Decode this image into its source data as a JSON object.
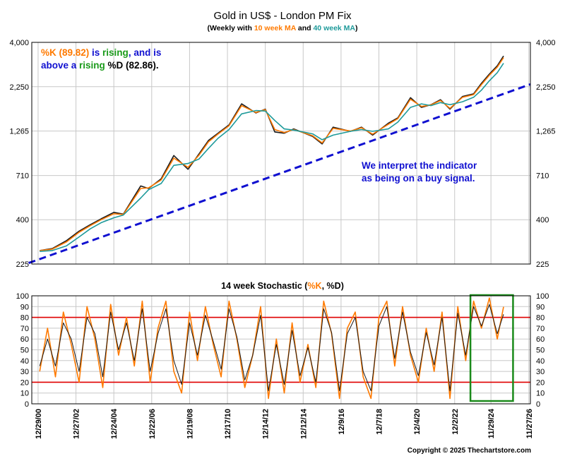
{
  "chart_data": [
    {
      "type": "line",
      "title": "Gold in US$ - London PM Fix",
      "subtitle": {
        "prefix": "(Weekly with ",
        "ma10": "10 week MA",
        "mid": " and ",
        "ma40": "40 week MA",
        "suffix": ")"
      },
      "y_scale": "log",
      "ylim": [
        225,
        4000
      ],
      "y_ticks": [
        "4,000",
        "2,250",
        "1,265",
        "710",
        "400",
        "225"
      ],
      "y_tick_values": [
        4000,
        2250,
        1265,
        710,
        400,
        225
      ],
      "x_range": [
        "2000-08",
        "2026-12"
      ],
      "series": [
        {
          "name": "Gold",
          "color": "#1a1a1a",
          "x": [
            "2001-01",
            "2001-09",
            "2002-06",
            "2003-02",
            "2003-09",
            "2004-04",
            "2004-12",
            "2005-06",
            "2006-05",
            "2006-10",
            "2007-06",
            "2008-02",
            "2008-11",
            "2009-06",
            "2009-12",
            "2010-06",
            "2011-01",
            "2011-09",
            "2012-06",
            "2012-12",
            "2013-06",
            "2013-12",
            "2014-06",
            "2015-06",
            "2015-12",
            "2016-07",
            "2017-06",
            "2018-01",
            "2018-08",
            "2019-06",
            "2019-12",
            "2020-08",
            "2021-03",
            "2021-09",
            "2022-03",
            "2022-09",
            "2023-05",
            "2023-12",
            "2024-05",
            "2024-10",
            "2025-03",
            "2025-07"
          ],
          "values": [
            268,
            275,
            305,
            345,
            375,
            405,
            440,
            430,
            620,
            600,
            680,
            920,
            770,
            940,
            1120,
            1230,
            1370,
            1800,
            1600,
            1680,
            1250,
            1230,
            1300,
            1180,
            1070,
            1330,
            1260,
            1330,
            1200,
            1400,
            1500,
            1950,
            1720,
            1780,
            1900,
            1680,
            1980,
            2050,
            2350,
            2650,
            2950,
            3350
          ]
        },
        {
          "name": "10 week MA",
          "color": "#ff7a00",
          "x": [
            "2001-01",
            "2001-09",
            "2002-06",
            "2003-02",
            "2003-09",
            "2004-04",
            "2004-12",
            "2005-06",
            "2006-05",
            "2006-10",
            "2007-06",
            "2008-02",
            "2008-11",
            "2009-06",
            "2009-12",
            "2010-06",
            "2011-01",
            "2011-09",
            "2012-06",
            "2012-12",
            "2013-06",
            "2013-12",
            "2014-06",
            "2015-06",
            "2015-12",
            "2016-07",
            "2017-06",
            "2018-01",
            "2018-08",
            "2019-06",
            "2019-12",
            "2020-08",
            "2021-03",
            "2021-09",
            "2022-03",
            "2022-09",
            "2023-05",
            "2023-12",
            "2024-05",
            "2024-10",
            "2025-03",
            "2025-07"
          ],
          "values": [
            268,
            273,
            300,
            340,
            370,
            400,
            432,
            428,
            600,
            605,
            670,
            890,
            790,
            925,
            1100,
            1215,
            1355,
            1760,
            1610,
            1670,
            1290,
            1240,
            1290,
            1190,
            1085,
            1310,
            1265,
            1320,
            1215,
            1380,
            1485,
            1910,
            1740,
            1775,
            1880,
            1700,
            1960,
            2030,
            2310,
            2610,
            2900,
            3280
          ]
        },
        {
          "name": "40 week MA",
          "color": "#1e9a9a",
          "x": [
            "2001-01",
            "2001-09",
            "2002-06",
            "2003-02",
            "2003-09",
            "2004-04",
            "2004-12",
            "2005-06",
            "2006-05",
            "2006-10",
            "2007-06",
            "2008-02",
            "2008-11",
            "2009-06",
            "2009-12",
            "2010-06",
            "2011-01",
            "2011-09",
            "2012-06",
            "2012-12",
            "2013-06",
            "2013-12",
            "2014-06",
            "2015-06",
            "2015-12",
            "2016-07",
            "2017-06",
            "2018-01",
            "2018-08",
            "2019-06",
            "2019-12",
            "2020-08",
            "2021-03",
            "2021-09",
            "2022-03",
            "2022-09",
            "2023-05",
            "2023-12",
            "2024-05",
            "2024-10",
            "2025-03",
            "2025-07"
          ],
          "values": [
            265,
            268,
            285,
            320,
            355,
            385,
            410,
            425,
            530,
            590,
            640,
            810,
            830,
            880,
            1010,
            1150,
            1290,
            1580,
            1650,
            1640,
            1450,
            1300,
            1280,
            1220,
            1130,
            1200,
            1260,
            1290,
            1260,
            1300,
            1420,
            1720,
            1800,
            1760,
            1830,
            1780,
            1850,
            1960,
            2150,
            2430,
            2700,
            3050
          ]
        },
        {
          "name": "trendline",
          "color": "#1010d0",
          "x": [
            "2000-06",
            "2026-12"
          ],
          "values": [
            228,
            2320
          ]
        }
      ],
      "annotations": {
        "status": {
          "k_label": "%K (89.82)",
          "t1": " is ",
          "rising1": "rising",
          "t2": ", and is",
          "line2a": "above a ",
          "rising2": "rising",
          "line2b": " %D (82.86)."
        },
        "interpret": {
          "line1": "We interpret the indicator",
          "line2": "as being on a buy signal."
        }
      },
      "grid": true
    },
    {
      "type": "line",
      "title": {
        "prefix": "14 week Stochastic (",
        "k": "%K",
        "mid": ", ",
        "d": "%D",
        "suffix": ")"
      },
      "ylim": [
        0,
        100
      ],
      "y_ticks": [
        "100",
        "90",
        "80",
        "70",
        "60",
        "50",
        "40",
        "30",
        "20",
        "10",
        "0"
      ],
      "y_tick_values": [
        100,
        90,
        80,
        70,
        60,
        50,
        40,
        30,
        20,
        10,
        0
      ],
      "reference_lines": [
        80,
        20
      ],
      "highlight_box": {
        "from": "2023-10",
        "to": "2026-01"
      },
      "x_tick_labels": [
        "12/29/00",
        "12/27/02",
        "12/24/04",
        "12/22/06",
        "12/19/08",
        "12/17/10",
        "12/14/12",
        "12/12/14",
        "12/9/16",
        "12/7/18",
        "12/4/20",
        "12/2/22",
        "11/29/24",
        "11/27/26"
      ],
      "x_tick_dates": [
        "2000-12",
        "2002-12",
        "2004-12",
        "2006-12",
        "2008-12",
        "2010-12",
        "2012-12",
        "2014-12",
        "2016-12",
        "2018-12",
        "2020-12",
        "2022-12",
        "2024-11",
        "2026-11"
      ],
      "series": [
        {
          "name": "%K",
          "color": "#ff7a00",
          "x": [
            "2001-01",
            "2001-06",
            "2001-11",
            "2002-04",
            "2002-09",
            "2003-02",
            "2003-07",
            "2003-12",
            "2004-05",
            "2004-10",
            "2005-03",
            "2005-08",
            "2006-01",
            "2006-06",
            "2006-11",
            "2007-04",
            "2007-09",
            "2008-02",
            "2008-07",
            "2008-12",
            "2009-05",
            "2009-10",
            "2010-03",
            "2010-08",
            "2011-01",
            "2011-06",
            "2011-11",
            "2012-04",
            "2012-09",
            "2013-02",
            "2013-07",
            "2013-12",
            "2014-05",
            "2014-10",
            "2015-03",
            "2015-08",
            "2016-01",
            "2016-06",
            "2016-11",
            "2017-04",
            "2017-09",
            "2018-02",
            "2018-07",
            "2018-12",
            "2019-05",
            "2019-10",
            "2020-03",
            "2020-08",
            "2021-01",
            "2021-06",
            "2021-11",
            "2022-04",
            "2022-09",
            "2023-02",
            "2023-07",
            "2023-12",
            "2024-05",
            "2024-10",
            "2025-03",
            "2025-07"
          ],
          "values": [
            30,
            70,
            25,
            85,
            55,
            20,
            90,
            60,
            15,
            92,
            45,
            80,
            35,
            95,
            20,
            70,
            95,
            30,
            10,
            85,
            40,
            90,
            55,
            25,
            95,
            60,
            15,
            45,
            90,
            5,
            60,
            10,
            75,
            20,
            55,
            15,
            95,
            65,
            5,
            70,
            85,
            25,
            5,
            80,
            95,
            35,
            90,
            45,
            20,
            70,
            30,
            85,
            5,
            90,
            40,
            95,
            70,
            98,
            60,
            89.82
          ]
        },
        {
          "name": "%D",
          "color": "#1a1a1a",
          "x": [
            "2001-01",
            "2001-06",
            "2001-11",
            "2002-04",
            "2002-09",
            "2003-02",
            "2003-07",
            "2003-12",
            "2004-05",
            "2004-10",
            "2005-03",
            "2005-08",
            "2006-01",
            "2006-06",
            "2006-11",
            "2007-04",
            "2007-09",
            "2008-02",
            "2008-07",
            "2008-12",
            "2009-05",
            "2009-10",
            "2010-03",
            "2010-08",
            "2011-01",
            "2011-06",
            "2011-11",
            "2012-04",
            "2012-09",
            "2013-02",
            "2013-07",
            "2013-12",
            "2014-05",
            "2014-10",
            "2015-03",
            "2015-08",
            "2016-01",
            "2016-06",
            "2016-11",
            "2017-04",
            "2017-09",
            "2018-02",
            "2018-07",
            "2018-12",
            "2019-05",
            "2019-10",
            "2020-03",
            "2020-08",
            "2021-01",
            "2021-06",
            "2021-11",
            "2022-04",
            "2022-09",
            "2023-02",
            "2023-07",
            "2023-12",
            "2024-05",
            "2024-10",
            "2025-03",
            "2025-07"
          ],
          "values": [
            35,
            60,
            35,
            75,
            60,
            30,
            80,
            65,
            25,
            85,
            50,
            75,
            40,
            88,
            30,
            65,
            88,
            40,
            18,
            75,
            45,
            82,
            58,
            32,
            88,
            62,
            22,
            45,
            82,
            12,
            55,
            18,
            68,
            26,
            52,
            20,
            88,
            66,
            12,
            65,
            80,
            30,
            12,
            72,
            90,
            42,
            85,
            48,
            26,
            66,
            36,
            80,
            12,
            84,
            45,
            90,
            72,
            92,
            65,
            82.86
          ]
        }
      ],
      "grid": true
    }
  ],
  "footer": {
    "copyright": "Copyright © 2025 Thechartstore.com"
  }
}
